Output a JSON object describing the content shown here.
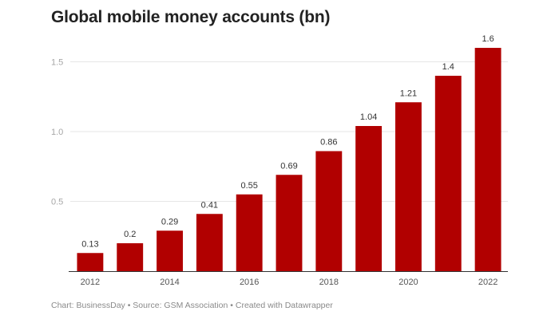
{
  "chart_data": {
    "type": "bar",
    "title": "Global mobile money accounts (bn)",
    "categories": [
      "2012",
      "2013",
      "2014",
      "2015",
      "2016",
      "2017",
      "2018",
      "2019",
      "2020",
      "2021",
      "2022"
    ],
    "values": [
      0.13,
      0.2,
      0.29,
      0.41,
      0.55,
      0.69,
      0.86,
      1.04,
      1.21,
      1.4,
      1.6
    ],
    "data_labels": [
      "0.13",
      "0.2",
      "0.29",
      "0.41",
      "0.55",
      "0.69",
      "0.86",
      "1.04",
      "1.21",
      "1.4",
      "1.6"
    ],
    "x_tick_labels": [
      "2012",
      "2014",
      "2016",
      "2018",
      "2020",
      "2022"
    ],
    "y_ticks": [
      0.5,
      1.0,
      1.5
    ],
    "y_tick_labels": [
      "0.5",
      "1.0",
      "1.5"
    ],
    "ylim": [
      0,
      1.6
    ],
    "bar_color": "#b10000",
    "grid": true,
    "legend": "none"
  },
  "footer": "Chart: BusinessDay • Source: GSM Association • Created with Datawrapper"
}
